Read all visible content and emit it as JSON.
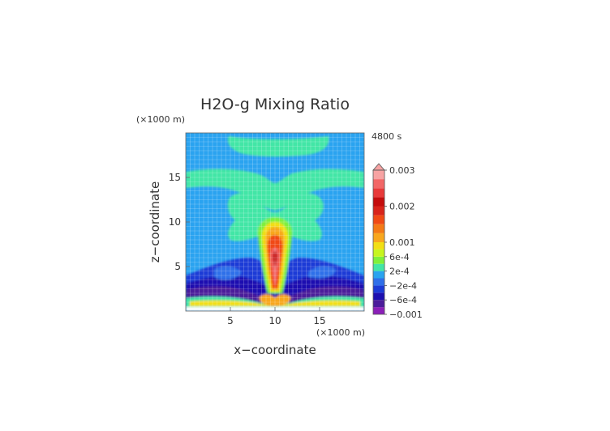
{
  "chart_data": {
    "type": "heatmap",
    "title": "H2O-g Mixing Ratio",
    "xlabel": "x−coordinate",
    "ylabel": "z−coordinate",
    "x_unit": "(×1000 m)",
    "y_unit": "(×1000 m)",
    "time_label": "4800 s",
    "xlim": [
      0,
      20
    ],
    "ylim": [
      0,
      20
    ],
    "x_ticks": [
      5,
      10,
      15
    ],
    "y_ticks": [
      5,
      10,
      15
    ],
    "grid": true,
    "colorbar": {
      "levels": [
        -0.001,
        -0.0008,
        -0.0006,
        -0.0004,
        -0.0002,
        0,
        0.0002,
        0.0004,
        0.0006,
        0.0008,
        0.001,
        0.00125,
        0.0015,
        0.00175,
        0.002,
        0.00225,
        0.0025,
        0.00275,
        0.003
      ],
      "colors": [
        "#8b1fb8",
        "#4b1c9a",
        "#1c0fb0",
        "#1b3bd6",
        "#2f6fe9",
        "#2aa3f0",
        "#42e6a6",
        "#7ff03a",
        "#c7f51e",
        "#f2df15",
        "#f8a71e",
        "#f47a16",
        "#f04a14",
        "#d8241a",
        "#c40d0d",
        "#e83a3a",
        "#f26767",
        "#f7a3a3"
      ],
      "labels": [
        {
          "value": 0.003,
          "text": "0.003"
        },
        {
          "value": 0.002,
          "text": "0.002"
        },
        {
          "value": 0.001,
          "text": "0.001"
        },
        {
          "value": 0.0006,
          "text": "6e-4"
        },
        {
          "value": 0.0002,
          "text": "2e-4"
        },
        {
          "value": -0.0002,
          "text": "−2e-4"
        },
        {
          "value": -0.0006,
          "text": "−6e-4"
        },
        {
          "value": -0.001,
          "text": "−0.001"
        }
      ]
    }
  }
}
